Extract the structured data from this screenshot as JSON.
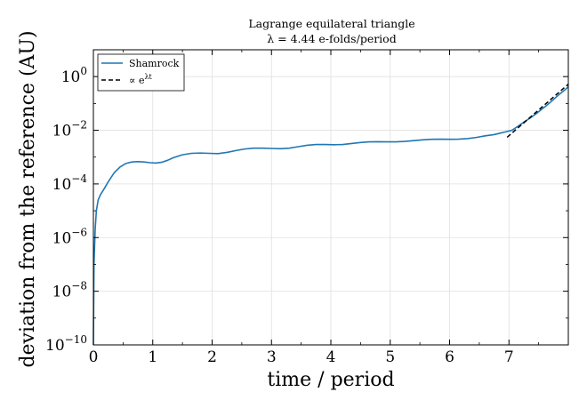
{
  "chart_data": {
    "type": "line",
    "title": "Lagrange equilateral triangle",
    "subtitle": "λ = 4.44 e-folds/period",
    "xlabel": "time / period",
    "ylabel": "deviation from the reference (AU)",
    "xlim": [
      0,
      8
    ],
    "ylim": [
      1e-10,
      10
    ],
    "yscale": "log",
    "grid": true,
    "legend_position": "top-left",
    "x_ticks": [
      "0",
      "1",
      "2",
      "3",
      "4",
      "5",
      "6",
      "7"
    ],
    "y_ticks": [
      {
        "base": "10",
        "exp": "0"
      },
      {
        "base": "10",
        "exp": "-2"
      },
      {
        "base": "10",
        "exp": "-4"
      },
      {
        "base": "10",
        "exp": "-6"
      },
      {
        "base": "10",
        "exp": "-8"
      },
      {
        "base": "10",
        "exp": "-10"
      }
    ],
    "series": [
      {
        "name": "Shamrock",
        "style": "solid",
        "color": "#1f77b4",
        "x": [
          0,
          0.01,
          0.03,
          0.05,
          0.08,
          0.12,
          0.18,
          0.25,
          0.35,
          0.45,
          0.55,
          0.65,
          0.75,
          0.85,
          0.95,
          1.05,
          1.15,
          1.25,
          1.35,
          1.5,
          1.65,
          1.8,
          1.95,
          2.1,
          2.25,
          2.4,
          2.55,
          2.7,
          2.85,
          3.0,
          3.15,
          3.3,
          3.45,
          3.6,
          3.75,
          3.9,
          4.05,
          4.2,
          4.35,
          4.5,
          4.65,
          4.8,
          4.95,
          5.1,
          5.25,
          5.4,
          5.55,
          5.7,
          5.85,
          6.0,
          6.15,
          6.3,
          6.45,
          6.6,
          6.75,
          6.85,
          6.95,
          7.05,
          7.15,
          7.25,
          7.35,
          7.45,
          7.55,
          7.65,
          7.75,
          7.85,
          7.95,
          8.0
        ],
        "y": [
          1e-10,
          1e-07,
          2e-06,
          1e-05,
          2.5e-05,
          4e-05,
          6.5e-05,
          0.00012,
          0.00026,
          0.00043,
          0.00058,
          0.00066,
          0.00068,
          0.00066,
          0.00062,
          0.0006,
          0.00064,
          0.00076,
          0.00095,
          0.00122,
          0.00138,
          0.00142,
          0.00138,
          0.00135,
          0.0015,
          0.00175,
          0.002,
          0.00215,
          0.00215,
          0.0021,
          0.00205,
          0.00215,
          0.00245,
          0.00275,
          0.00295,
          0.00295,
          0.0029,
          0.00295,
          0.0032,
          0.0035,
          0.0037,
          0.00375,
          0.0037,
          0.0037,
          0.00385,
          0.0041,
          0.0044,
          0.0046,
          0.00465,
          0.0046,
          0.00465,
          0.0049,
          0.0054,
          0.0062,
          0.0069,
          0.0078,
          0.0088,
          0.01,
          0.014,
          0.02,
          0.028,
          0.04,
          0.06,
          0.09,
          0.14,
          0.22,
          0.33,
          0.42
        ]
      },
      {
        "name": "∝ e^{λt}",
        "style": "dashed",
        "color": "#000000",
        "x": [
          6.97,
          8.0
        ],
        "y": [
          0.0055,
          0.52
        ]
      }
    ]
  }
}
